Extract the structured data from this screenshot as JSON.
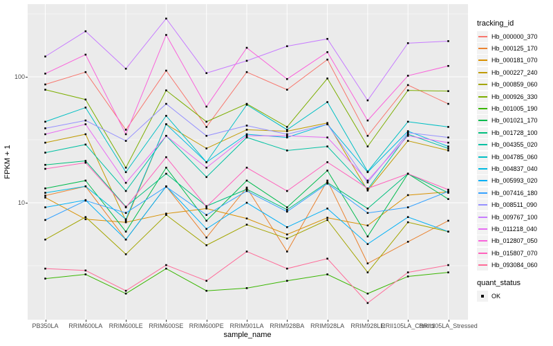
{
  "chart_data": {
    "type": "line",
    "title": "",
    "xlabel": "sample_name",
    "ylabel": "FPKM + 1",
    "y_scale": "log10",
    "y_ticks": [
      100,
      10
    ],
    "y_minor_gridlines": [
      316.2,
      31.62,
      3.162
    ],
    "ylim": [
      1.18,
      380
    ],
    "grid": "on",
    "legend_position": "right",
    "legend_title": "tracking_id",
    "marker": "black-square",
    "categories": [
      "PB350LA",
      "RRIM600LA",
      "RRIM600LE",
      "RRIM600SE",
      "RRIM600PE",
      "RRIM901LA",
      "RRIM928BA",
      "RRIM928LA",
      "RRIM928LE",
      "RRII105LA_Control",
      "RRII105LA_Stressed"
    ],
    "series": [
      {
        "name": "Hb_000000_370",
        "color": "#F8766D",
        "values": [
          87,
          109,
          38,
          112,
          40,
          109,
          79,
          137,
          34,
          86,
          61
        ]
      },
      {
        "name": "Hb_000125_170",
        "color": "#EA8331",
        "values": [
          11.4,
          13.5,
          5.1,
          13.5,
          5.3,
          13.2,
          4.1,
          15,
          3.3,
          4.9,
          7.2
        ]
      },
      {
        "name": "Hb_000181_070",
        "color": "#D89000",
        "values": [
          11,
          7.4,
          7,
          8.2,
          9,
          7.5,
          5.6,
          7.6,
          6.6,
          11.5,
          12.2
        ]
      },
      {
        "name": "Hb_000227_240",
        "color": "#C09B00",
        "values": [
          30,
          35,
          7.2,
          42,
          27,
          38,
          37,
          43,
          12.5,
          31,
          26
        ]
      },
      {
        "name": "Hb_000859_060",
        "color": "#A3A500",
        "values": [
          5.1,
          7.7,
          3.9,
          8,
          4.6,
          6.7,
          5.2,
          7.3,
          2.8,
          7,
          5.9
        ]
      },
      {
        "name": "Hb_000926_330",
        "color": "#7CAE00",
        "values": [
          79,
          66,
          19,
          78,
          44,
          61,
          40,
          97,
          28,
          78,
          77
        ]
      },
      {
        "name": "Hb_001005_190",
        "color": "#39B600",
        "values": [
          2.5,
          2.7,
          1.9,
          3,
          2,
          2.1,
          2.4,
          2.7,
          1.9,
          2.6,
          2.8
        ]
      },
      {
        "name": "Hb_001021_170",
        "color": "#00BB4E",
        "values": [
          13,
          15,
          5.9,
          19,
          7.2,
          15,
          9.2,
          18,
          5.4,
          17,
          10.7
        ]
      },
      {
        "name": "Hb_001728_100",
        "color": "#00BF7D",
        "values": [
          20,
          21.5,
          9.3,
          17,
          9.4,
          12.8,
          8.8,
          14.5,
          9,
          17,
          12
        ]
      },
      {
        "name": "Hb_004355_020",
        "color": "#00C1A3",
        "values": [
          25,
          29,
          12.4,
          34,
          16,
          33,
          26,
          28,
          12.8,
          35,
          27
        ]
      },
      {
        "name": "Hb_004785_060",
        "color": "#00BFC4",
        "values": [
          44,
          57,
          17.5,
          49,
          21,
          60,
          38,
          63,
          17.7,
          44,
          40
        ]
      },
      {
        "name": "Hb_004837_040",
        "color": "#00BAE0",
        "values": [
          12,
          13.5,
          7.4,
          42,
          21,
          35,
          33,
          42,
          17.5,
          37,
          28
        ]
      },
      {
        "name": "Hb_005993_020",
        "color": "#00B0F6",
        "values": [
          9.2,
          10.5,
          5.1,
          13.5,
          6.2,
          10,
          6.4,
          9,
          4.7,
          7.7,
          5.9
        ]
      },
      {
        "name": "Hb_007416_180",
        "color": "#35A2FF",
        "values": [
          7.3,
          10.4,
          8.3,
          13.4,
          8,
          12.4,
          8.5,
          14.2,
          8.3,
          9.2,
          12.3
        ]
      },
      {
        "name": "Hb_008511_090",
        "color": "#9590FF",
        "values": [
          39,
          45,
          31,
          61,
          34,
          41,
          35,
          42,
          14.5,
          36,
          33
        ]
      },
      {
        "name": "Hb_009767_100",
        "color": "#C77CFF",
        "values": [
          145,
          230,
          116,
          290,
          107,
          134,
          175,
          200,
          65,
          185,
          192
        ]
      },
      {
        "name": "Hb_011218_040",
        "color": "#E76BF3",
        "values": [
          35,
          42,
          14.4,
          34,
          19,
          34,
          34,
          33,
          15,
          34,
          30
        ]
      },
      {
        "name": "Hb_012807_050",
        "color": "#FA62DB",
        "values": [
          106,
          150,
          35,
          215,
          58,
          170,
          96,
          157,
          45,
          102,
          122
        ]
      },
      {
        "name": "Hb_015807_070",
        "color": "#FF62BC",
        "values": [
          18.6,
          20.8,
          9.2,
          23,
          9.3,
          19,
          12.4,
          21,
          13,
          17,
          12.7
        ]
      },
      {
        "name": "Hb_093084_060",
        "color": "#FF6A98",
        "values": [
          3,
          2.9,
          2,
          3.2,
          2.4,
          4.1,
          3,
          3.6,
          1.6,
          2.8,
          3.2
        ]
      }
    ],
    "legend2_title": "quant_status",
    "legend2_items": [
      {
        "label": "OK",
        "marker": "black-square"
      }
    ]
  },
  "colors": {
    "panel_bg": "#EBEBEB",
    "grid_major": "#FFFFFF",
    "grid_minor": "#FFFFFF",
    "legend_key_bg": "#F2F2F2",
    "tick_label": "#4D4D4D",
    "point_marker": "#000000"
  }
}
